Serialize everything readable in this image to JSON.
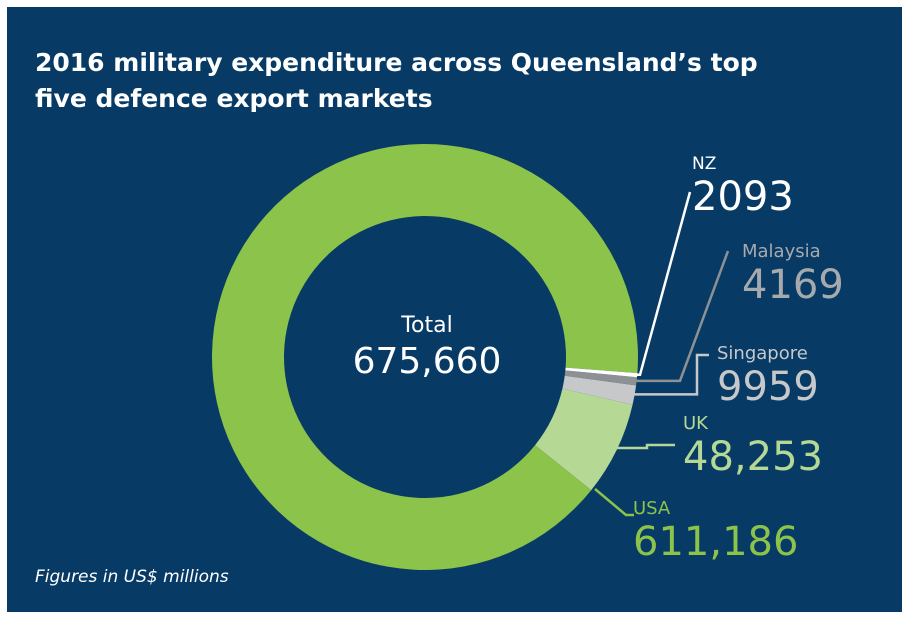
{
  "title": "2016 military expenditure across Queensland’s top five defence export markets",
  "footnote": "Figures in US$ millions",
  "center": {
    "label": "Total",
    "value": "675,660"
  },
  "colors": {
    "background": "#073b66",
    "usa": "#8cc34a",
    "uk": "#b5d994",
    "singapore": "#c6c8ca",
    "malaysia": "#8d9194",
    "nz": "#ffffff"
  },
  "chart_data": {
    "type": "pie",
    "style": "donut",
    "title": "2016 military expenditure across Queensland’s top five defence export markets",
    "unit": "US$ millions",
    "total": 675660,
    "slices": [
      {
        "label": "USA",
        "value": 611186,
        "display": "611,186",
        "color": "#8cc34a",
        "text_color": "#8cc34a"
      },
      {
        "label": "UK",
        "value": 48253,
        "display": "48,253",
        "color": "#b5d994",
        "text_color": "#b5d994"
      },
      {
        "label": "Singapore",
        "value": 9959,
        "display": "9959",
        "color": "#c6c8ca",
        "text_color": "#c6c8ca"
      },
      {
        "label": "Malaysia",
        "value": 4169,
        "display": "4169",
        "color": "#8d9194",
        "text_color": "#a7aaad"
      },
      {
        "label": "NZ",
        "value": 2093,
        "display": "2093",
        "color": "#ffffff",
        "text_color": "#ffffff"
      }
    ]
  }
}
